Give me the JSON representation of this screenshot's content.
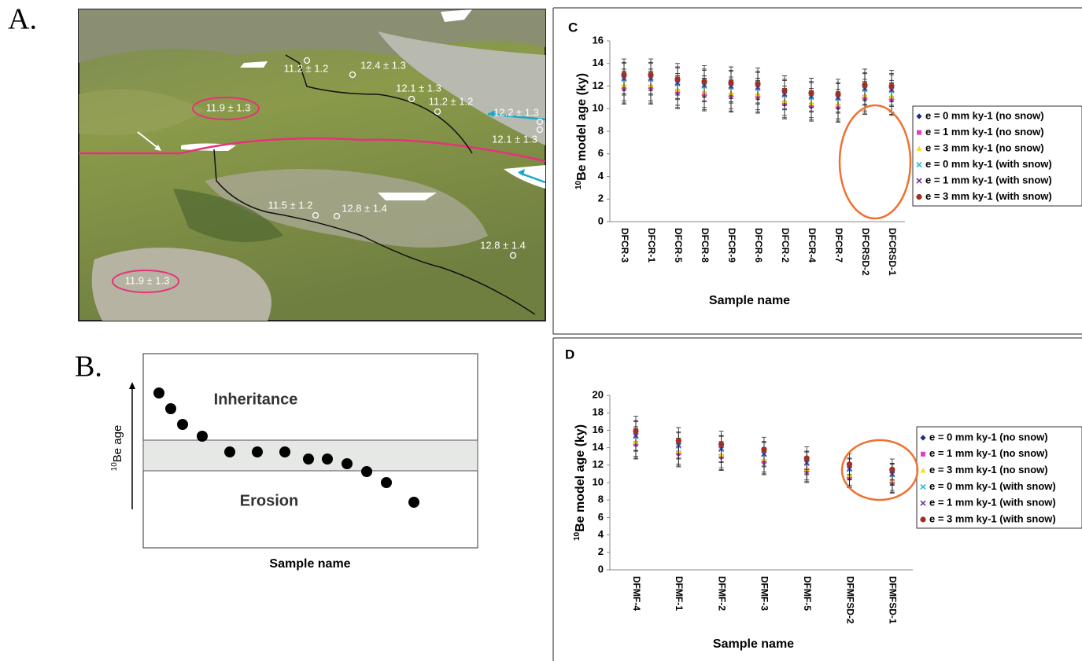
{
  "figure": {
    "photo": {
      "panel": "A.",
      "labels": [
        "11.2 ± 1.2",
        "12.4 ± 1.3",
        "12.1 ± 1.3",
        "11.2 ± 1.2",
        "12.2 ± 1.3",
        "12.1 ± 1.3",
        "11.9 ± 1.3",
        "11.5 ± 1.2",
        "12.8 ± 1.4",
        "12.8 ± 1.4",
        "11.9 ± 1.3"
      ]
    },
    "schematic": {
      "panel": "B.",
      "upper": "Inheritance",
      "lower": "Erosion",
      "y_label_sup": "10",
      "y_label": "Be age",
      "x_label": "Sample name"
    }
  },
  "chart_data": [
    {
      "type": "dot",
      "panel": "C",
      "y_label_sup": "10",
      "y_label": "Be model age (ky)",
      "x_label": "Sample name",
      "categories": [
        "DFCR-3",
        "DFCR-1",
        "DFCR-5",
        "DFCR-8",
        "DFCR-9",
        "DFCR-6",
        "DFCR-2",
        "DFCR-4",
        "DFCR-7",
        "DFCRSD-2",
        "DFCRSD-1"
      ],
      "ylim": [
        0,
        16
      ],
      "yticks": [
        0,
        2,
        4,
        6,
        8,
        10,
        12,
        14,
        16
      ],
      "errors": [
        1.4,
        1.4,
        1.4,
        1.4,
        1.4,
        1.4,
        1.3,
        1.3,
        1.3,
        1.4,
        1.4
      ],
      "series": [
        {
          "name": "e = 0 mm ky-1 (no snow)",
          "color": "#1f2a80",
          "marker": "diamond",
          "values": [
            11.8,
            11.8,
            11.4,
            11.2,
            11.1,
            11.0,
            10.4,
            10.2,
            10.1,
            10.9,
            10.8
          ]
        },
        {
          "name": "e = 1 mm ky-1 (no snow)",
          "color": "#e040c0",
          "marker": "square",
          "values": [
            11.9,
            11.9,
            11.5,
            11.3,
            11.2,
            11.1,
            10.5,
            10.3,
            10.2,
            11.0,
            10.9
          ]
        },
        {
          "name": "e = 3 mm ky-1 (no snow)",
          "color": "#f2e020",
          "marker": "triangle",
          "values": [
            12.1,
            12.1,
            11.7,
            11.5,
            11.4,
            11.3,
            10.7,
            10.5,
            10.4,
            11.2,
            11.1
          ]
        },
        {
          "name": "e = 0 mm ky-1 (with snow)",
          "color": "#20c0d0",
          "marker": "x",
          "values": [
            12.6,
            12.6,
            12.2,
            12.0,
            11.9,
            11.8,
            11.2,
            11.0,
            10.9,
            11.7,
            11.6
          ]
        },
        {
          "name": "e = 1 mm ky-1 (with snow)",
          "color": "#7030a0",
          "marker": "x",
          "values": [
            12.7,
            12.7,
            12.3,
            12.1,
            12.0,
            11.9,
            11.3,
            11.1,
            11.0,
            11.8,
            11.7
          ]
        },
        {
          "name": "e = 3 mm ky-1 (with snow)",
          "color": "#a03020",
          "marker": "circle",
          "values": [
            13.0,
            13.0,
            12.6,
            12.4,
            12.3,
            12.2,
            11.6,
            11.4,
            11.3,
            12.1,
            12.0
          ]
        }
      ]
    },
    {
      "type": "dot",
      "panel": "D",
      "y_label_sup": "10",
      "y_label": "Be model age (ky)",
      "x_label": "Sample name",
      "categories": [
        "DFMF-4",
        "DFMF-1",
        "DFMF-2",
        "DFMF-3",
        "DFMF-5",
        "DFMFSD-2",
        "DFMFSD-1"
      ],
      "ylim": [
        0,
        20
      ],
      "yticks": [
        0,
        2,
        4,
        6,
        8,
        10,
        12,
        14,
        16,
        18,
        20
      ],
      "errors": [
        1.7,
        1.5,
        1.5,
        1.4,
        1.3,
        1.2,
        1.2
      ],
      "series": [
        {
          "name": "e = 0 mm ky-1 (no snow)",
          "color": "#1f2a80",
          "marker": "diamond",
          "values": [
            14.4,
            13.3,
            12.9,
            12.3,
            11.3,
            10.6,
            10.0
          ]
        },
        {
          "name": "e = 1 mm ky-1 (no snow)",
          "color": "#e040c0",
          "marker": "square",
          "values": [
            14.5,
            13.4,
            13.0,
            12.4,
            11.4,
            10.7,
            10.1
          ]
        },
        {
          "name": "e = 3 mm ky-1 (no snow)",
          "color": "#f2e020",
          "marker": "triangle",
          "values": [
            14.7,
            13.6,
            13.2,
            12.6,
            11.6,
            10.9,
            10.3
          ]
        },
        {
          "name": "e = 0 mm ky-1 (with snow)",
          "color": "#20c0d0",
          "marker": "x",
          "values": [
            15.3,
            14.2,
            13.8,
            13.2,
            12.2,
            11.5,
            10.9
          ]
        },
        {
          "name": "e = 1 mm ky-1 (with snow)",
          "color": "#7030a0",
          "marker": "x",
          "values": [
            15.4,
            14.3,
            13.9,
            13.3,
            12.3,
            11.6,
            11.0
          ]
        },
        {
          "name": "e = 3 mm ky-1 (with snow)",
          "color": "#a03020",
          "marker": "circle",
          "values": [
            15.9,
            14.8,
            14.4,
            13.8,
            12.8,
            12.1,
            11.5
          ]
        }
      ]
    }
  ]
}
